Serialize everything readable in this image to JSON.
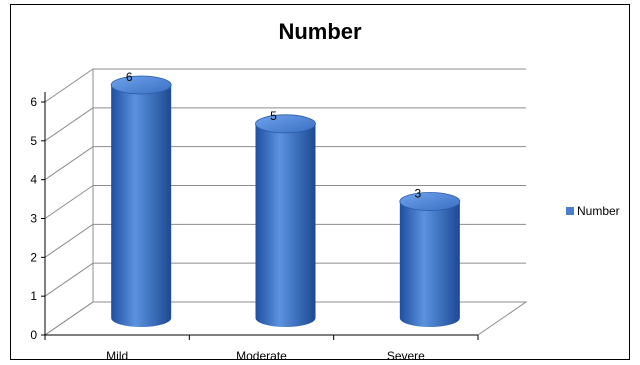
{
  "chart_data": {
    "type": "bar",
    "title": "Number",
    "categories": [
      "Mild",
      "Moderate",
      "Severe"
    ],
    "series": [
      {
        "name": "Number",
        "values": [
          6,
          5,
          3
        ],
        "color": "#4a7fd0"
      }
    ],
    "ylim": [
      0,
      6
    ],
    "yticks": [
      "0",
      "1",
      "2",
      "3",
      "4",
      "5",
      "6"
    ],
    "data_labels": [
      "6",
      "5",
      "3"
    ],
    "grid": true,
    "legend": "right",
    "bar_shape": "3d-cylinder"
  }
}
